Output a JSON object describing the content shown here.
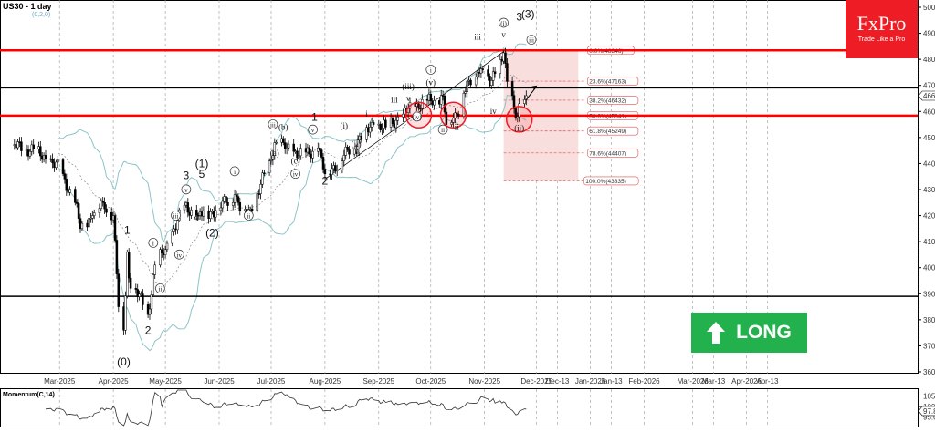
{
  "header": {
    "title": "US30 - 1 day",
    "subtitle": "(0,2,0)"
  },
  "logo": {
    "brand": "FxPro",
    "tagline": "Trade Like a Pro",
    "color": "#ee1c24"
  },
  "signal": {
    "label": "LONG",
    "icon": "arrow-up-icon",
    "color": "#22b14c"
  },
  "momentum": {
    "label": "Momentum(C,14)",
    "last": "97.84",
    "ticks": [
      "105.00",
      "100.00",
      "95.00"
    ]
  },
  "chart_data": {
    "type": "candlestick",
    "title": "US30 - 1 day",
    "ylim": [
      36000,
      50000
    ],
    "yticks": [
      "50000",
      "49000",
      "48000",
      "47000",
      "46000",
      "45000",
      "44000",
      "43000",
      "42000",
      "41000",
      "40000",
      "39000",
      "38000",
      "37000",
      "36000"
    ],
    "last_price": "46605",
    "xticks": [
      {
        "label": "Mar-2025",
        "date": "2025-03-01"
      },
      {
        "label": "Apr-2025",
        "date": "2025-04-01"
      },
      {
        "label": "May-2025",
        "date": "2025-05-01"
      },
      {
        "label": "Jun-2025",
        "date": "2025-06-01"
      },
      {
        "label": "Jul-2025",
        "date": "2025-07-01"
      },
      {
        "label": "Aug-2025",
        "date": "2025-08-01"
      },
      {
        "label": "Sep-2025",
        "date": "2025-09-01"
      },
      {
        "label": "Oct-2025",
        "date": "2025-10-01"
      },
      {
        "label": "Nov-2025",
        "date": "2025-11-01"
      },
      {
        "label": "Dec-2025",
        "date": "2025-12-01"
      },
      {
        "label": "Dec-13",
        "date": "2025-12-13"
      },
      {
        "label": "Jan-2026",
        "date": "2026-01-01"
      },
      {
        "label": "Jan-13",
        "date": "2026-01-13"
      },
      {
        "label": "Feb-2026",
        "date": "2026-02-01"
      },
      {
        "label": "Mar-2026",
        "date": "2026-03-01"
      },
      {
        "label": "Mar-13",
        "date": "2026-03-13"
      },
      {
        "label": "Apr-2026",
        "date": "2026-04-01"
      },
      {
        "label": "Apr-13",
        "date": "2026-04-13"
      }
    ],
    "closes": [
      [
        "2025-02-01",
        44700
      ],
      [
        "2025-02-15",
        44500
      ],
      [
        "2025-03-01",
        43800
      ],
      [
        "2025-03-10",
        42500
      ],
      [
        "2025-03-13",
        41500
      ],
      [
        "2025-03-20",
        42000
      ],
      [
        "2025-03-26",
        42500
      ],
      [
        "2025-04-01",
        42000
      ],
      [
        "2025-04-04",
        38500
      ],
      [
        "2025-04-07",
        37600
      ],
      [
        "2025-04-09",
        40600
      ],
      [
        "2025-04-10",
        39600
      ],
      [
        "2025-04-21",
        38200
      ],
      [
        "2025-04-25",
        40100
      ],
      [
        "2025-05-01",
        40700
      ],
      [
        "2025-05-12",
        42400
      ],
      [
        "2025-05-20",
        42000
      ],
      [
        "2025-05-30",
        42200
      ],
      [
        "2025-06-10",
        42800
      ],
      [
        "2025-06-13",
        42200
      ],
      [
        "2025-06-20",
        42200
      ],
      [
        "2025-06-30",
        44100
      ],
      [
        "2025-07-03",
        44800
      ],
      [
        "2025-07-10",
        44600
      ],
      [
        "2025-07-20",
        44300
      ],
      [
        "2025-07-28",
        44600
      ],
      [
        "2025-08-01",
        43600
      ],
      [
        "2025-08-10",
        44100
      ],
      [
        "2025-08-20",
        44900
      ],
      [
        "2025-08-29",
        45500
      ],
      [
        "2025-09-05",
        45400
      ],
      [
        "2025-09-15",
        45900
      ],
      [
        "2025-09-23",
        46300
      ],
      [
        "2025-10-01",
        46400
      ],
      [
        "2025-10-08",
        46600
      ],
      [
        "2025-10-10",
        45500
      ],
      [
        "2025-10-16",
        45900
      ],
      [
        "2025-10-20",
        46700
      ],
      [
        "2025-10-28",
        47500
      ],
      [
        "2025-10-31",
        47600
      ],
      [
        "2025-11-04",
        47000
      ],
      [
        "2025-11-12",
        48250
      ],
      [
        "2025-11-14",
        47150
      ],
      [
        "2025-11-18",
        46100
      ],
      [
        "2025-11-20",
        45800
      ],
      [
        "2025-11-21",
        46300
      ],
      [
        "2025-11-24",
        46450
      ],
      [
        "2025-11-25",
        46605
      ]
    ],
    "horizontal_levels": [
      {
        "price": 48346,
        "color": "#ff0000"
      },
      {
        "price": 46905,
        "color": "#000000"
      },
      {
        "price": 45841,
        "color": "#ff0000"
      },
      {
        "price": 38900,
        "color": "#000000"
      }
    ],
    "fibonacci": [
      {
        "label": "0.0%(48346)",
        "price": 48346
      },
      {
        "label": "23.6%(47163)",
        "price": 47163
      },
      {
        "label": "38.2%(46432)",
        "price": 46432
      },
      {
        "label": "50.0%(45841)",
        "price": 45841
      },
      {
        "label": "61.8%(45249)",
        "price": 45249
      },
      {
        "label": "78.6%(44407)",
        "price": 44407
      },
      {
        "label": "100.0%(43335)",
        "price": 43335
      }
    ],
    "fib_range": {
      "start": "2025-11-12",
      "end": "2025-12-25"
    },
    "trendline": [
      [
        "2025-08-01",
        43400
      ],
      [
        "2025-11-12",
        48300
      ]
    ],
    "highlight_circles": [
      [
        "2025-09-24",
        45860
      ],
      [
        "2025-10-14",
        45860
      ],
      [
        "2025-11-21",
        45700
      ]
    ],
    "wave_labels": [
      [
        "2025-04-07",
        36250,
        "(0)",
        "plain"
      ],
      [
        "2025-04-09",
        41300,
        "1",
        "plain"
      ],
      [
        "2025-04-21",
        37450,
        "2",
        "plain"
      ],
      [
        "2025-04-24",
        40850,
        "i",
        "circle"
      ],
      [
        "2025-04-28",
        39100,
        "ii",
        "circle"
      ],
      [
        "2025-05-07",
        41900,
        "iii",
        "circle"
      ],
      [
        "2025-05-09",
        40400,
        "iv",
        "circle"
      ],
      [
        "2025-05-13",
        42900,
        "v",
        "circle"
      ],
      [
        "2025-05-13",
        43400,
        "3",
        "plain"
      ],
      [
        "2025-05-19",
        41800,
        "4",
        "plain"
      ],
      [
        "2025-05-22",
        43450,
        "5",
        "plain"
      ],
      [
        "2025-05-22",
        43850,
        "(1)",
        "plain"
      ],
      [
        "2025-05-28",
        41200,
        "(2)",
        "plain"
      ],
      [
        "2025-06-10",
        43600,
        "i",
        "circle"
      ],
      [
        "2025-06-18",
        41900,
        "ii",
        "circle"
      ],
      [
        "2025-07-02",
        45400,
        "iii",
        "circle"
      ],
      [
        "2025-07-03",
        44300,
        "(a)",
        "plain"
      ],
      [
        "2025-07-08",
        45300,
        "(b)",
        "plain"
      ],
      [
        "2025-07-15",
        44000,
        "(c)",
        "plain"
      ],
      [
        "2025-07-15",
        43500,
        "iv",
        "circle"
      ],
      [
        "2025-07-25",
        45200,
        "v",
        "circle"
      ],
      [
        "2025-07-26",
        45650,
        "1",
        "plain"
      ],
      [
        "2025-08-01",
        43200,
        "2",
        "plain"
      ],
      [
        "2025-08-12",
        45350,
        "(i)",
        "plain"
      ],
      [
        "2025-08-19",
        44650,
        "(ii)",
        "plain"
      ],
      [
        "2025-08-20",
        44300,
        "ii",
        "plain"
      ],
      [
        "2025-08-25",
        45800,
        "i",
        "plain"
      ],
      [
        "2025-09-10",
        46350,
        "iii",
        "plain"
      ],
      [
        "2025-09-18",
        46850,
        "(iii)",
        "plain"
      ],
      [
        "2025-09-18",
        46400,
        "v",
        "plain"
      ],
      [
        "2025-09-23",
        45700,
        "(iv)",
        "circle"
      ],
      [
        "2025-10-01",
        47500,
        "i",
        "circle"
      ],
      [
        "2025-10-01",
        47000,
        "(v)",
        "plain"
      ],
      [
        "2025-10-08",
        45200,
        "ii",
        "circle"
      ],
      [
        "2025-10-16",
        45300,
        "ii",
        "plain"
      ],
      [
        "2025-10-28",
        48750,
        "iii",
        "plain"
      ],
      [
        "2025-11-06",
        45900,
        "iv",
        "plain"
      ],
      [
        "2025-11-12",
        49300,
        "(i)",
        "circle"
      ],
      [
        "2025-11-12",
        48850,
        "v",
        "plain"
      ],
      [
        "2025-11-21",
        49500,
        "3",
        "plain"
      ],
      [
        "2025-11-26",
        49600,
        "(3)",
        "plain"
      ],
      [
        "2025-11-28",
        48650,
        "iii",
        "circle"
      ],
      [
        "2025-11-21",
        45250,
        "(ii)",
        "plain"
      ]
    ],
    "indicators": [
      "Bollinger Bands(20)",
      "Moving Average(20)",
      "Momentum(C,14)"
    ],
    "colors": {
      "bars": "#000000",
      "bands": "#8cc4c8",
      "ma": "#888888",
      "fib_zone": "#f9dede",
      "fib_line": "#e05050"
    }
  }
}
